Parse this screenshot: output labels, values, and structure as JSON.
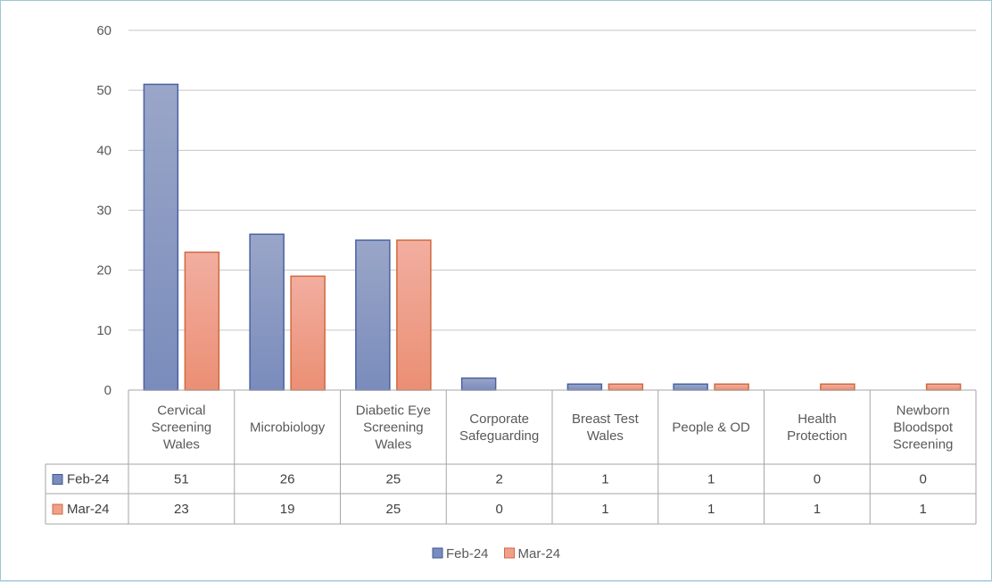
{
  "chart_data": {
    "type": "bar",
    "categories": [
      "Cervical Screening Wales",
      "Microbiology",
      "Diabetic Eye Screening Wales",
      "Corporate Safeguarding",
      "Breast Test Wales",
      "People & OD",
      "Health Protection",
      "Newborn Bloodspot Screening"
    ],
    "series": [
      {
        "name": "Feb-24",
        "values": [
          51,
          26,
          25,
          2,
          1,
          1,
          0,
          0
        ],
        "color": "#8e9cc4"
      },
      {
        "name": "Mar-24",
        "values": [
          23,
          19,
          25,
          0,
          1,
          1,
          1,
          1
        ],
        "color": "#f0a08a"
      }
    ],
    "ylim": [
      0,
      60
    ],
    "yticks": [
      0,
      10,
      20,
      30,
      40,
      50,
      60
    ],
    "grid": true,
    "data_table": true,
    "legend": "bottom"
  }
}
